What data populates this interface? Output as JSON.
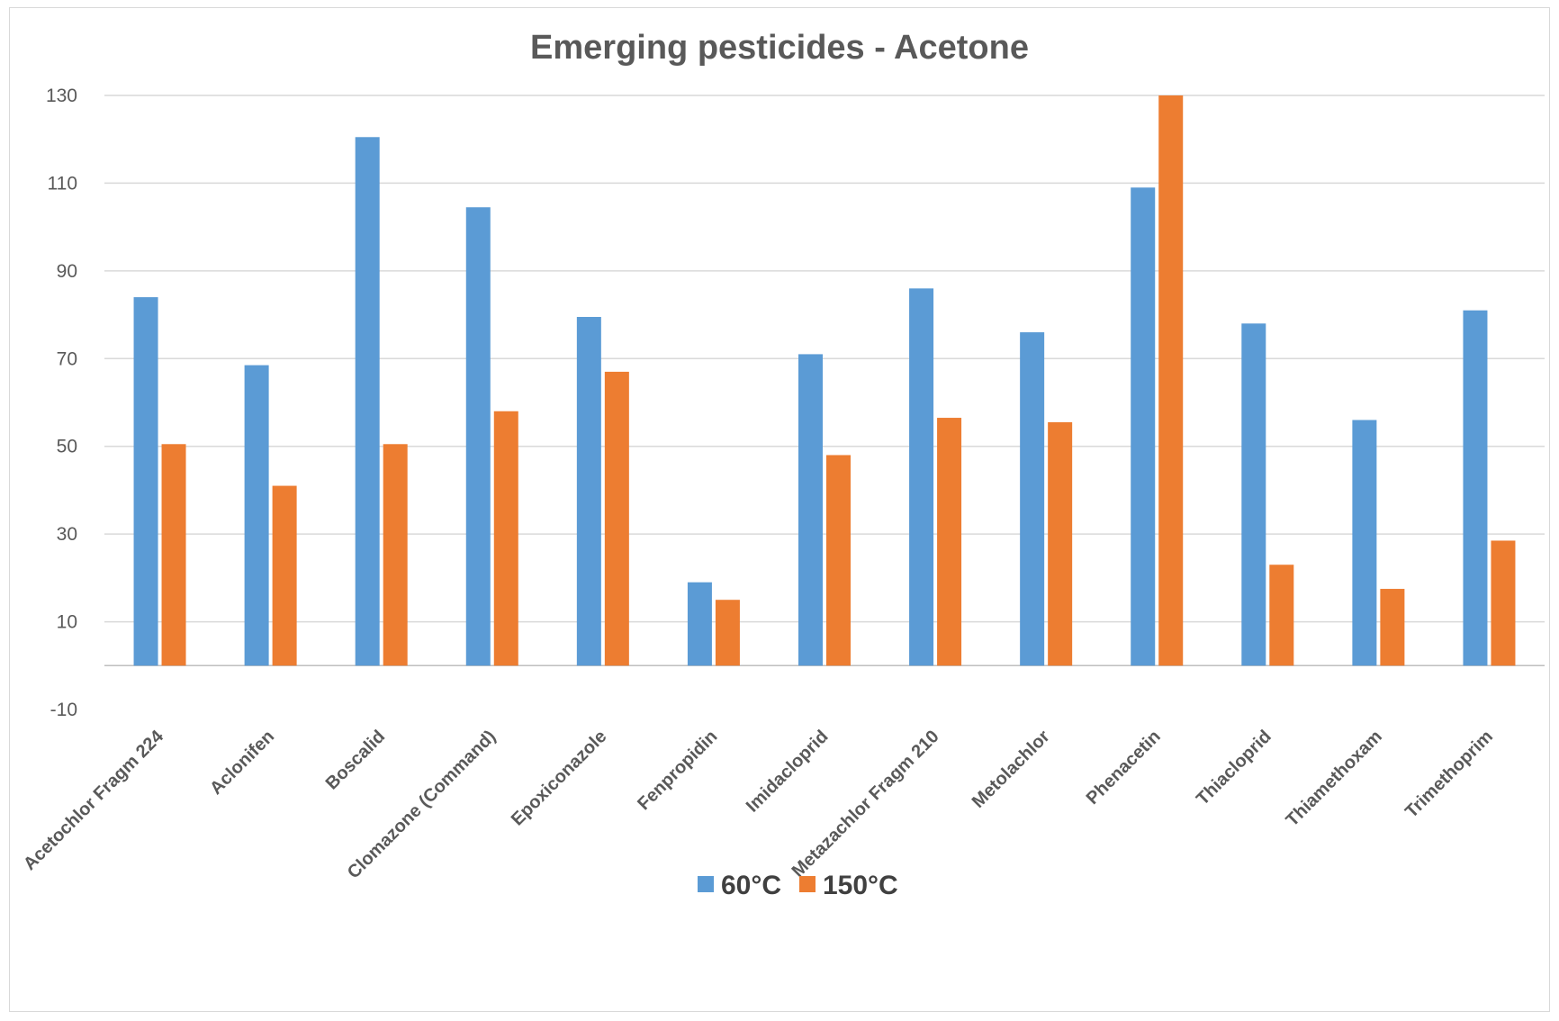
{
  "chart_data": {
    "type": "bar",
    "title": "Emerging pesticides - Acetone",
    "xlabel": "",
    "ylabel": "",
    "ylim": [
      -10,
      130
    ],
    "yticks": [
      -10,
      10,
      30,
      50,
      70,
      90,
      110,
      130
    ],
    "grid": true,
    "legend_position": "bottom",
    "categories": [
      "Acetochlor Fragm 224",
      "Aclonifen",
      "Boscalid",
      "Clomazone (Command)",
      "Epoxiconazole",
      "Fenpropidin",
      "Imidacloprid",
      "Metazachlor Fragm 210",
      "Metolachlor",
      "Phenacetin",
      "Thiacloprid",
      "Thiamethoxam",
      "Trimethoprim"
    ],
    "series": [
      {
        "name": "60°C",
        "color": "#5b9bd5",
        "values": [
          84,
          68.5,
          120.5,
          104.5,
          79.5,
          19,
          71,
          86,
          76,
          109,
          78,
          56,
          81
        ]
      },
      {
        "name": "150°C",
        "color": "#ed7d31",
        "values": [
          50.5,
          41,
          50.5,
          58,
          67,
          15,
          48,
          56.5,
          55.5,
          130,
          23,
          17.5,
          28.5
        ]
      }
    ]
  }
}
